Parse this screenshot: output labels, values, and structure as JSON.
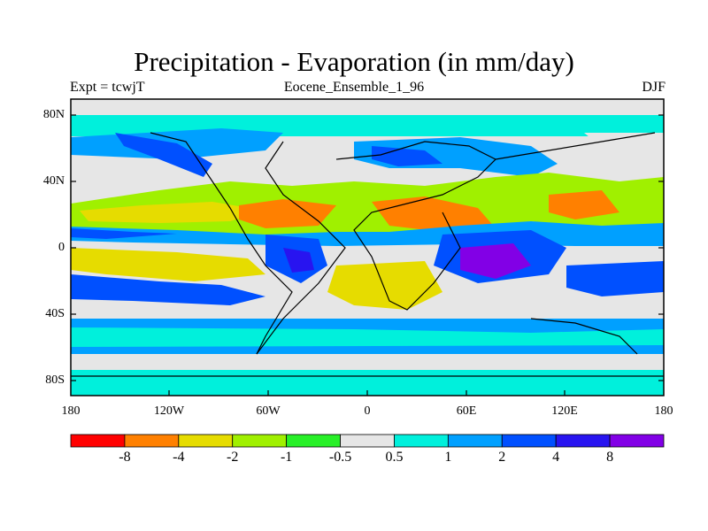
{
  "header": {
    "title": "Precipitation - Evaporation (in mm/day)",
    "left": "Expt = tcwjT",
    "center": "Eocene_Ensemble_1_96",
    "right": "DJF"
  },
  "axes": {
    "lat_ticks": [
      "80N",
      "40N",
      "0",
      "40S",
      "80S"
    ],
    "lon_ticks": [
      "180",
      "120W",
      "60W",
      "0",
      "60E",
      "120E",
      "180"
    ]
  },
  "colorbar": {
    "colors": [
      "#ff0000",
      "#ff8000",
      "#e6dc00",
      "#a0f000",
      "#28f028",
      "#e6e6e6",
      "#00f0dc",
      "#00a0ff",
      "#0050ff",
      "#2814f0",
      "#8200e6"
    ],
    "labels": [
      "-8",
      "-4",
      "-2",
      "-1",
      "-0.5",
      "0.5",
      "1",
      "2",
      "4",
      "8"
    ]
  },
  "chart_data": {
    "type": "heatmap",
    "title": "Precipitation - Evaporation (in mm/day)",
    "subtitle": "Eocene_Ensemble_1_96",
    "season": "DJF",
    "experiment": "tcwjT",
    "xlim": [
      -180,
      180
    ],
    "ylim": [
      -90,
      90
    ],
    "levels": [
      -8,
      -4,
      -2,
      -1,
      -0.5,
      0.5,
      1,
      2,
      4,
      8
    ],
    "zonal_band_levels": [
      {
        "lat": [
          70,
          90
        ],
        "level": "-0.5 to 0.5"
      },
      {
        "lat": [
          40,
          70
        ],
        "level": "0.5 to 4"
      },
      {
        "lat": [
          15,
          35
        ],
        "level": "-4 to -0.5"
      },
      {
        "lat": [
          0,
          12
        ],
        "level": "2 to 8"
      },
      {
        "lat": [
          -12,
          0
        ],
        "level": "-2 to -0.5"
      },
      {
        "lat": [
          -35,
          -15
        ],
        "level": "2 to 8"
      },
      {
        "lat": [
          -60,
          -40
        ],
        "level": "1 to 4"
      },
      {
        "lat": [
          -90,
          -65
        ],
        "level": "-1 to 0.5"
      }
    ]
  }
}
